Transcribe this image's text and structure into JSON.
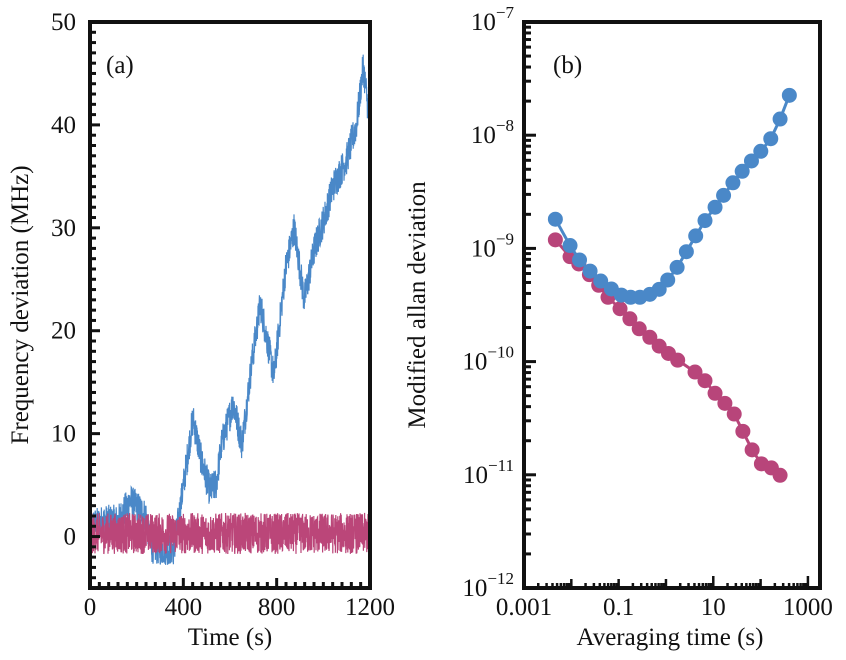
{
  "chart_data": [
    {
      "type": "line",
      "panel_label": "(a)",
      "xlabel": "Time (s)",
      "ylabel": "Frequency deviation (MHz)",
      "xlim": [
        0,
        1200
      ],
      "ylim": [
        -5,
        50
      ],
      "x_ticks": [
        "0",
        "400",
        "800",
        "1200"
      ],
      "x_tick_values": [
        0,
        400,
        800,
        1200
      ],
      "y_ticks": [
        "0",
        "10",
        "20",
        "30",
        "40",
        "50"
      ],
      "y_tick_values": [
        0,
        10,
        20,
        30,
        40,
        50
      ],
      "grid": false,
      "series": [
        {
          "color": "#4a88c8",
          "x": [
            0,
            60,
            120,
            173,
            240,
            260,
            300,
            361,
            390,
            441,
            477,
            513,
            540,
            564,
            614,
            651,
            694,
            730,
            788,
            838,
            875,
            918,
            962,
            1005,
            1041,
            1099,
            1142,
            1171,
            1200
          ],
          "y": [
            1,
            1.5,
            1.5,
            3.5,
            2,
            -1,
            -1.2,
            -1.2,
            3.3,
            11.5,
            7.4,
            4.5,
            5,
            9,
            13,
            9,
            17,
            22.6,
            15.6,
            26,
            30,
            23,
            28,
            31,
            34,
            36.6,
            40,
            45.7,
            40
          ]
        },
        {
          "color": "#bb4679",
          "x": [
            0,
            300,
            600,
            900,
            1200
          ],
          "y": [
            0.3,
            0.3,
            0.3,
            0.3,
            0.3
          ]
        }
      ]
    },
    {
      "type": "line",
      "panel_label": "(b)",
      "xlabel": "Averaging time (s)",
      "ylabel": "Modified allan deviation",
      "x_scale": "log",
      "y_scale": "log",
      "xlim": [
        0.001,
        1800
      ],
      "ylim": [
        1e-12,
        1e-07
      ],
      "x_ticks": [
        "0.001",
        "0.1",
        "10",
        "1000"
      ],
      "x_tick_values": [
        0.001,
        0.1,
        10,
        1000
      ],
      "y_ticks": [
        {
          "base": "10",
          "exp": "−7"
        },
        {
          "base": "10",
          "exp": "−8"
        },
        {
          "base": "10",
          "exp": "−9"
        },
        {
          "base": "10",
          "exp": "−10"
        },
        {
          "base": "10",
          "exp": "−11"
        },
        {
          "base": "10",
          "exp": "−12"
        }
      ],
      "y_tick_values": [
        1e-07,
        1e-08,
        1e-09,
        1e-10,
        1e-11,
        1e-12
      ],
      "grid": false,
      "series": [
        {
          "color": "#4a88c8",
          "marker": "circle",
          "x": [
            0.0046,
            0.0094,
            0.0149,
            0.0249,
            0.0418,
            0.0702,
            0.114,
            0.179,
            0.281,
            0.456,
            0.719,
            1.09,
            1.72,
            2.7,
            4.25,
            6.68,
            10.9,
            16.5,
            26.0,
            40.8,
            64.1,
            101,
            164,
            258,
            405
          ],
          "y": [
            1.81e-09,
            1.06e-09,
            7.9e-10,
            6.3e-10,
            5.15e-10,
            4.38e-10,
            3.87e-10,
            3.7e-10,
            3.7e-10,
            3.93e-10,
            4.35e-10,
            5.26e-10,
            6.8e-10,
            9.35e-10,
            1.29e-09,
            1.76e-09,
            2.31e-09,
            2.94e-09,
            3.8e-09,
            4.8e-09,
            5.92e-09,
            7.21e-09,
            9.31e-09,
            1.39e-08,
            2.25e-08
          ]
        },
        {
          "color": "#b8457a",
          "marker": "circle",
          "x": [
            0.0046,
            0.0094,
            0.0144,
            0.0241,
            0.0379,
            0.0596,
            0.107,
            0.173,
            0.272,
            0.456,
            0.719,
            1.13,
            1.77,
            4.11,
            6.68,
            10.9,
            17.6,
            27.7,
            42.2,
            66.2,
            104,
            169,
            258
          ],
          "y": [
            1.19e-09,
            8.45e-10,
            7.28e-10,
            5.86e-10,
            4.72e-10,
            3.7e-10,
            2.93e-10,
            2.39e-10,
            1.95e-10,
            1.64e-10,
            1.37e-10,
            1.18e-10,
            1.03e-10,
            8.09e-11,
            6.78e-11,
            5.25e-11,
            4.28e-11,
            3.44e-11,
            2.42e-11,
            1.66e-11,
            1.25e-11,
            1.15e-11,
            9.9e-12
          ]
        }
      ]
    }
  ]
}
